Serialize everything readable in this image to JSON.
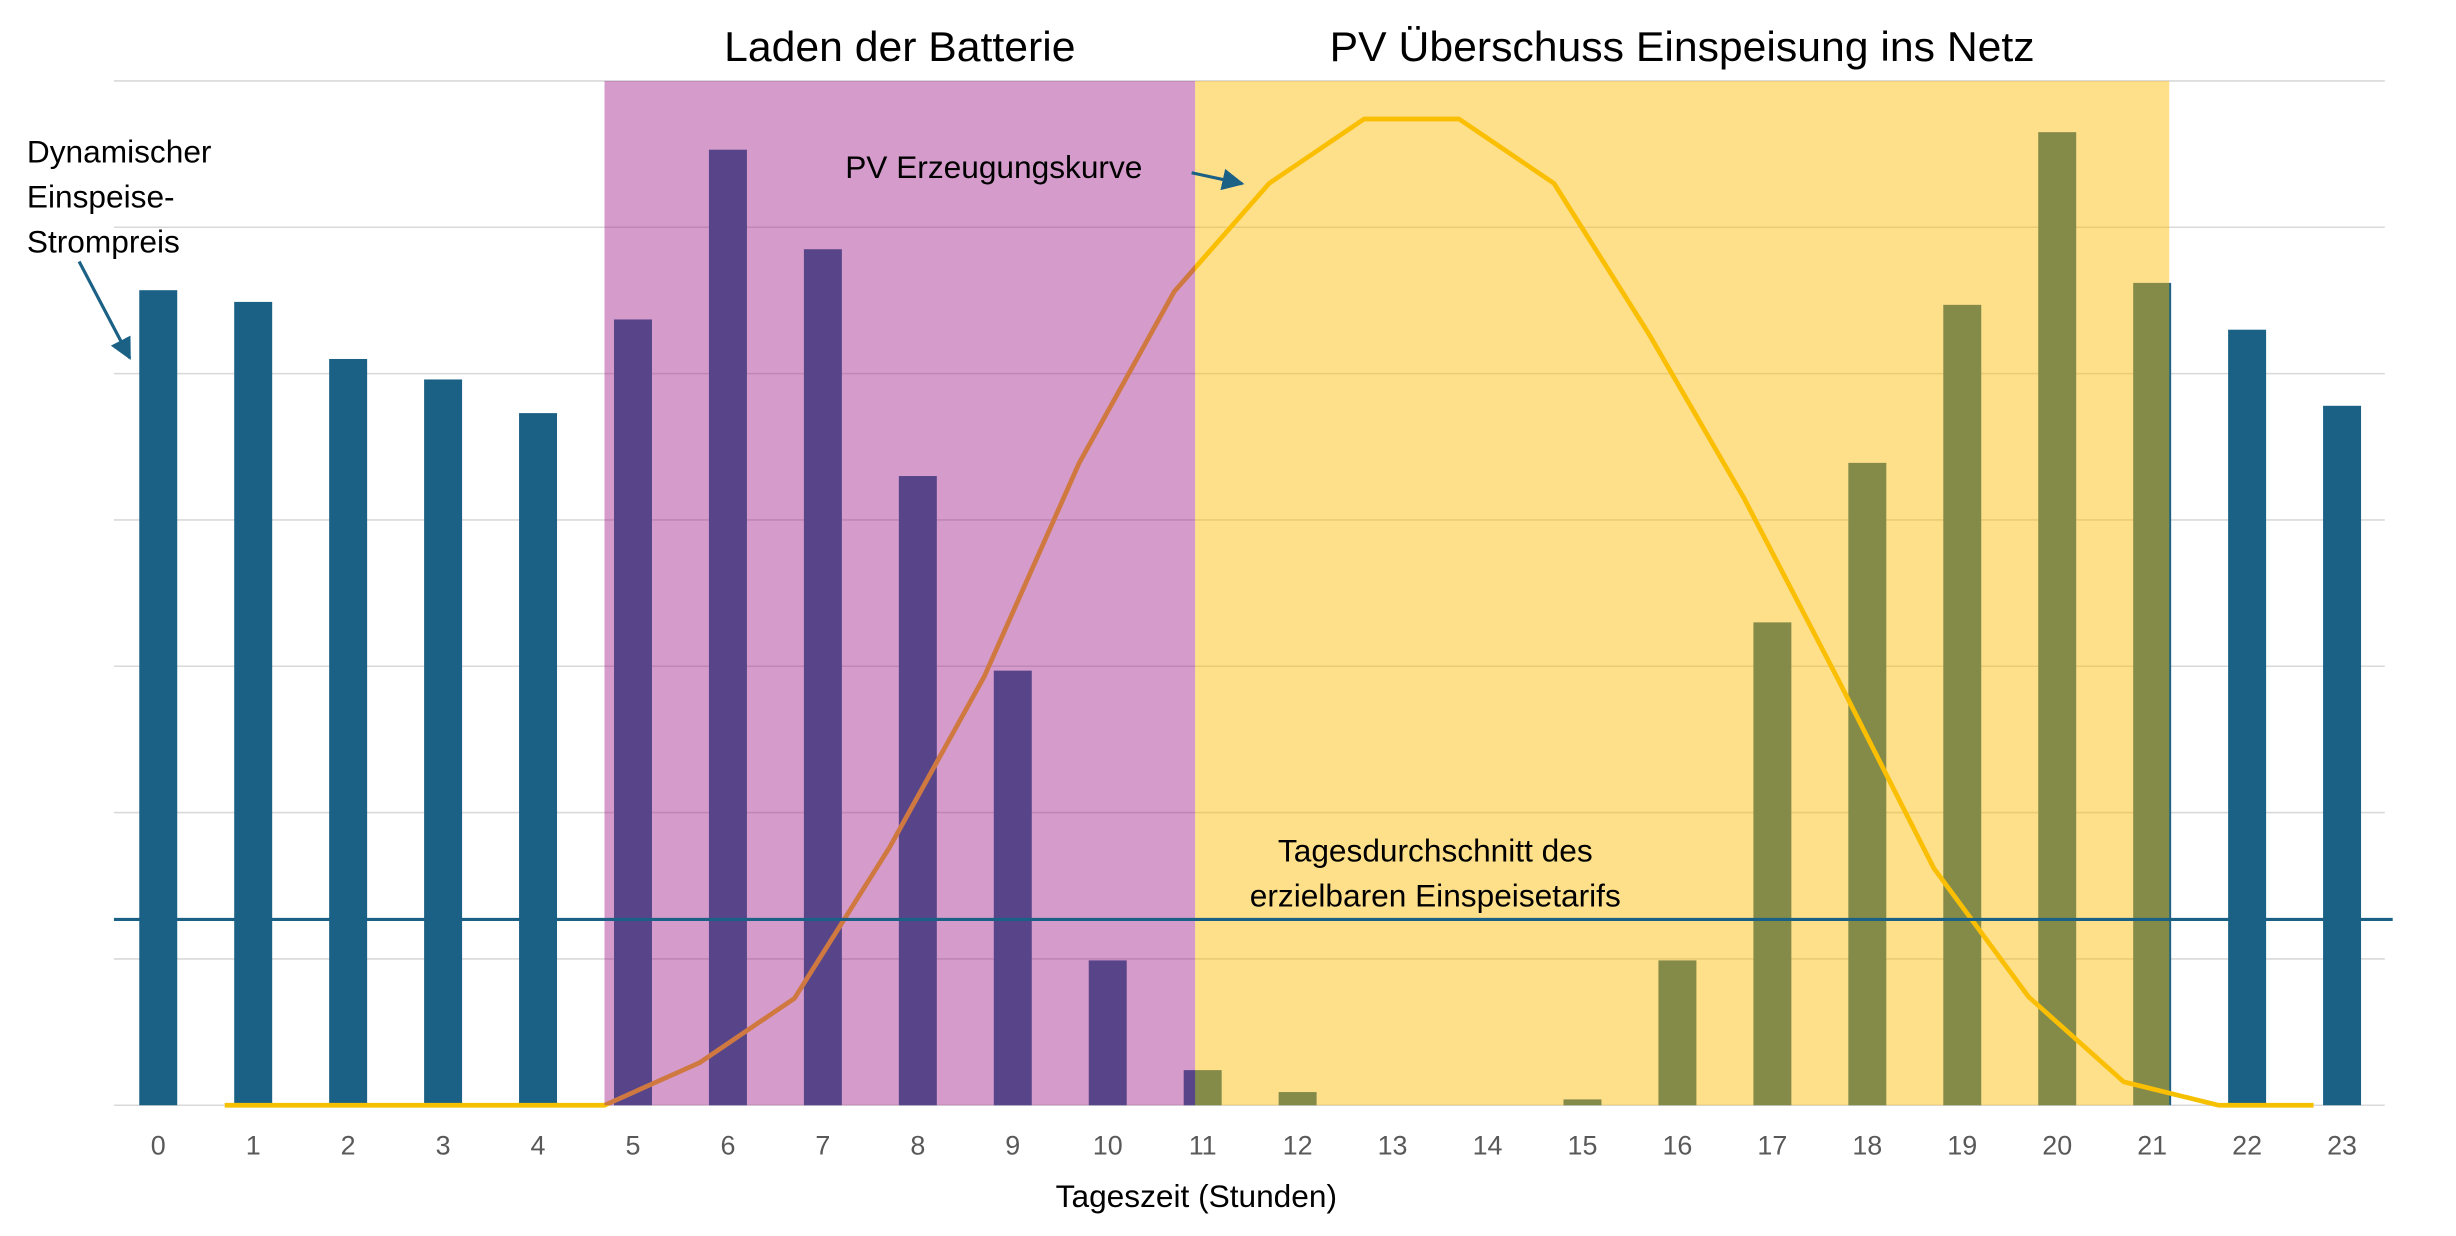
{
  "chart_data": {
    "type": "bar",
    "x_label": "Tageszeit (Stunden)",
    "categories": [
      "0",
      "1",
      "2",
      "3",
      "4",
      "5",
      "6",
      "7",
      "8",
      "9",
      "10",
      "11",
      "12",
      "13",
      "14",
      "15",
      "16",
      "17",
      "18",
      "19",
      "20",
      "21",
      "22",
      "23"
    ],
    "ylim": [
      0,
      7
    ],
    "yticks": [
      0,
      1,
      2,
      3,
      4,
      5,
      6,
      7
    ],
    "grid": true,
    "series": [
      {
        "type": "bar",
        "color": "#1a6185",
        "label_lines": [
          "Dynamischer",
          "Einspeise-",
          "Strompreis"
        ],
        "values": [
          5.57,
          5.49,
          5.1,
          4.96,
          4.73,
          5.37,
          6.53,
          5.85,
          4.3,
          2.97,
          0.99,
          0.24,
          0.09,
          0,
          0,
          0.04,
          0.99,
          3.3,
          4.39,
          5.47,
          6.65,
          5.62,
          5.3,
          4.78
        ]
      },
      {
        "type": "line",
        "color": "#f5c000",
        "label_lines": [
          "PV Erzeugungskurve"
        ],
        "values": [
          null,
          0,
          0,
          0,
          0,
          0,
          0.29,
          0.73,
          1.76,
          2.93,
          4.39,
          5.56,
          6.3,
          6.74,
          6.74,
          6.3,
          5.27,
          4.15,
          2.9,
          1.62,
          0.74,
          0.16,
          0,
          0
        ]
      }
    ],
    "reference_line": {
      "value": 1.27,
      "color": "#1a6185",
      "label_lines": [
        "Tagesdurchschnitt des",
        "erzielbaren Einspeisetarifs"
      ]
    },
    "bands": [
      {
        "label": "Laden der Batterie",
        "from": 4.7,
        "to": 10.92,
        "color": "rgba(161,38,142,0.46)"
      },
      {
        "label": "PV Überschuss Einspeisung ins Netz",
        "from": 10.92,
        "to": 21.18,
        "color": "rgba(254,189,4,0.465)"
      }
    ]
  }
}
